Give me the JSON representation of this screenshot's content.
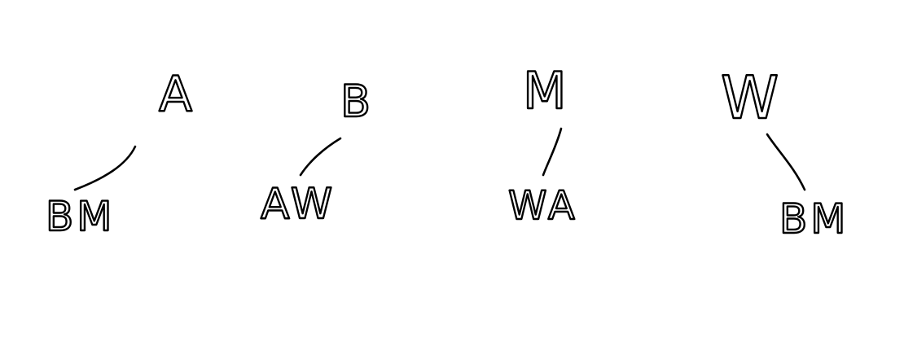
{
  "trees": [
    {
      "root": "A",
      "child": "BM"
    },
    {
      "root": "B",
      "child": "AW"
    },
    {
      "root": "M",
      "child": "WA"
    },
    {
      "root": "W",
      "child": "BM"
    }
  ]
}
